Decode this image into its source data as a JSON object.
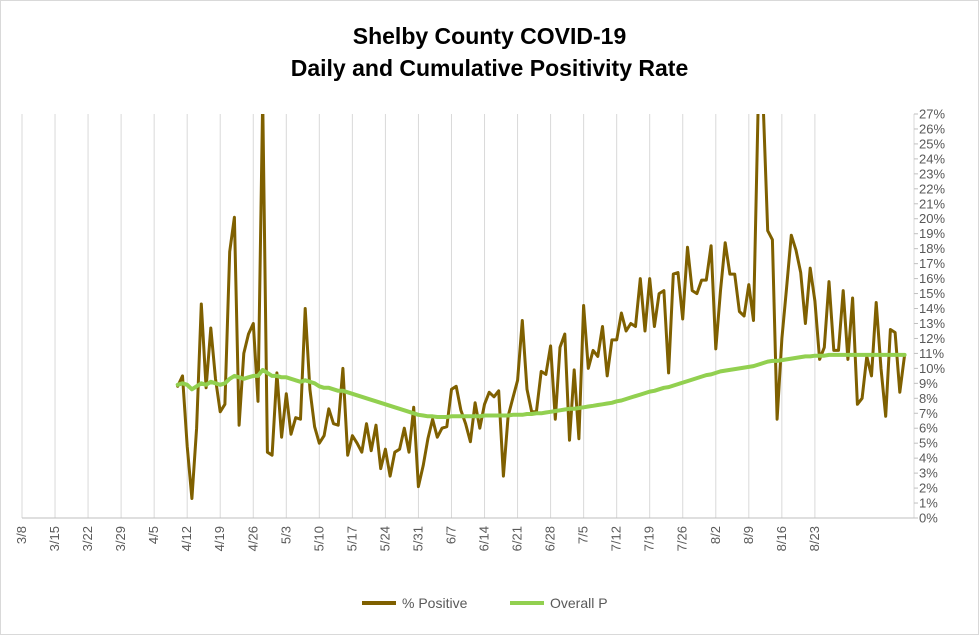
{
  "chart_data": {
    "type": "line",
    "title": [
      "Shelby County COVID-19",
      "Daily and Cumulative Positivity Rate"
    ],
    "x_tick_labels": [
      "3/8",
      "3/15",
      "3/22",
      "3/29",
      "4/5",
      "4/12",
      "4/19",
      "4/26",
      "5/3",
      "5/10",
      "5/17",
      "5/24",
      "5/31",
      "6/7",
      "6/14",
      "6/21",
      "6/28",
      "7/5",
      "7/12",
      "7/19",
      "7/26",
      "8/2",
      "8/9",
      "8/16",
      "8/23"
    ],
    "y_tick_labels": [
      "0%",
      "1%",
      "2%",
      "3%",
      "4%",
      "5%",
      "6%",
      "7%",
      "8%",
      "9%",
      "10%",
      "11%",
      "12%",
      "13%",
      "14%",
      "15%",
      "16%",
      "17%",
      "18%",
      "19%",
      "20%",
      "21%",
      "22%",
      "23%",
      "24%",
      "25%",
      "26%",
      "27%"
    ],
    "ylim": [
      0,
      27
    ],
    "y_axis_position": "right",
    "grid": "vertical",
    "legend_position": "bottom",
    "series": [
      {
        "name": "% Positive",
        "color": "#7f6000",
        "points": [
          [
            33,
            8.8
          ],
          [
            34,
            9.5
          ],
          [
            35,
            4.8
          ],
          [
            36,
            1.3
          ],
          [
            37,
            6.0
          ],
          [
            38,
            14.3
          ],
          [
            39,
            8.7
          ],
          [
            40,
            12.7
          ],
          [
            41,
            9.3
          ],
          [
            42,
            7.1
          ],
          [
            43,
            7.6
          ],
          [
            44,
            17.8
          ],
          [
            45,
            20.1
          ],
          [
            46,
            6.2
          ],
          [
            47,
            11.0
          ],
          [
            48,
            12.3
          ],
          [
            49,
            13.0
          ],
          [
            50,
            7.8
          ],
          [
            51,
            28.0
          ],
          [
            52,
            4.4
          ],
          [
            53,
            4.2
          ],
          [
            54,
            9.7
          ],
          [
            55,
            5.4
          ],
          [
            56,
            8.3
          ],
          [
            57,
            5.6
          ],
          [
            58,
            6.7
          ],
          [
            59,
            6.6
          ],
          [
            60,
            14.0
          ],
          [
            61,
            8.6
          ],
          [
            62,
            6.1
          ],
          [
            63,
            5.0
          ],
          [
            64,
            5.5
          ],
          [
            65,
            7.3
          ],
          [
            66,
            6.3
          ],
          [
            67,
            6.2
          ],
          [
            68,
            10.0
          ],
          [
            69,
            4.2
          ],
          [
            70,
            5.5
          ],
          [
            71,
            5.0
          ],
          [
            72,
            4.4
          ],
          [
            73,
            6.3
          ],
          [
            74,
            4.5
          ],
          [
            75,
            6.2
          ],
          [
            76,
            3.3
          ],
          [
            77,
            4.6
          ],
          [
            78,
            2.8
          ],
          [
            79,
            4.4
          ],
          [
            80,
            4.6
          ],
          [
            81,
            6.0
          ],
          [
            82,
            4.4
          ],
          [
            83,
            7.4
          ],
          [
            84,
            2.1
          ],
          [
            85,
            3.5
          ],
          [
            86,
            5.3
          ],
          [
            87,
            6.6
          ],
          [
            88,
            5.4
          ],
          [
            89,
            6.0
          ],
          [
            90,
            6.1
          ],
          [
            91,
            8.6
          ],
          [
            92,
            8.8
          ],
          [
            93,
            7.2
          ],
          [
            94,
            6.3
          ],
          [
            95,
            5.1
          ],
          [
            96,
            7.7
          ],
          [
            97,
            6.0
          ],
          [
            98,
            7.6
          ],
          [
            99,
            8.4
          ],
          [
            100,
            8.1
          ],
          [
            101,
            8.5
          ],
          [
            102,
            2.8
          ],
          [
            103,
            6.8
          ],
          [
            104,
            8.0
          ],
          [
            105,
            9.2
          ],
          [
            106,
            13.2
          ],
          [
            107,
            8.6
          ],
          [
            108,
            7.1
          ],
          [
            109,
            7.1
          ],
          [
            110,
            9.8
          ],
          [
            111,
            9.6
          ],
          [
            112,
            11.5
          ],
          [
            113,
            6.6
          ],
          [
            114,
            11.4
          ],
          [
            115,
            12.3
          ],
          [
            116,
            5.2
          ],
          [
            117,
            9.9
          ],
          [
            118,
            5.3
          ],
          [
            119,
            14.2
          ],
          [
            120,
            10.0
          ],
          [
            121,
            11.2
          ],
          [
            122,
            10.8
          ],
          [
            123,
            12.8
          ],
          [
            124,
            9.5
          ],
          [
            125,
            11.9
          ],
          [
            126,
            11.9
          ],
          [
            127,
            13.7
          ],
          [
            128,
            12.5
          ],
          [
            129,
            13.0
          ],
          [
            130,
            12.8
          ],
          [
            131,
            16.0
          ],
          [
            132,
            12.5
          ],
          [
            133,
            16.0
          ],
          [
            134,
            12.8
          ],
          [
            135,
            15.0
          ],
          [
            136,
            15.2
          ],
          [
            137,
            9.7
          ],
          [
            138,
            16.3
          ],
          [
            139,
            16.4
          ],
          [
            140,
            13.3
          ],
          [
            141,
            18.1
          ],
          [
            142,
            15.2
          ],
          [
            143,
            15.0
          ],
          [
            144,
            15.9
          ],
          [
            145,
            15.9
          ],
          [
            146,
            18.2
          ],
          [
            147,
            11.3
          ],
          [
            148,
            15.2
          ],
          [
            149,
            18.4
          ],
          [
            150,
            16.3
          ],
          [
            151,
            16.3
          ],
          [
            152,
            13.8
          ],
          [
            153,
            13.5
          ],
          [
            154,
            15.6
          ],
          [
            155,
            13.2
          ],
          [
            156,
            28.0
          ],
          [
            157,
            28.0
          ],
          [
            158,
            19.2
          ],
          [
            159,
            18.6
          ],
          [
            160,
            6.6
          ],
          [
            161,
            12.0
          ],
          [
            162,
            15.4
          ],
          [
            163,
            18.9
          ],
          [
            164,
            17.9
          ],
          [
            165,
            16.4
          ],
          [
            166,
            13.0
          ],
          [
            167,
            16.7
          ],
          [
            168,
            14.5
          ],
          [
            169,
            10.6
          ],
          [
            170,
            11.4
          ],
          [
            171,
            15.8
          ],
          [
            172,
            11.2
          ],
          [
            173,
            11.2
          ],
          [
            174,
            15.2
          ],
          [
            175,
            10.6
          ],
          [
            176,
            14.7
          ],
          [
            177,
            7.6
          ],
          [
            178,
            8.0
          ],
          [
            179,
            10.8
          ],
          [
            180,
            9.5
          ],
          [
            181,
            14.4
          ],
          [
            182,
            10.0
          ],
          [
            183,
            6.8
          ],
          [
            184,
            12.6
          ],
          [
            185,
            12.4
          ],
          [
            186,
            8.4
          ],
          [
            187,
            10.9
          ]
        ]
      },
      {
        "name": "Overall P",
        "color": "#92d050",
        "points": [
          [
            33,
            8.9
          ],
          [
            34,
            9.0
          ],
          [
            35,
            8.9
          ],
          [
            36,
            8.6
          ],
          [
            37,
            8.8
          ],
          [
            38,
            9.0
          ],
          [
            39,
            8.9
          ],
          [
            40,
            9.1
          ],
          [
            41,
            9.0
          ],
          [
            42,
            8.9
          ],
          [
            43,
            9.0
          ],
          [
            44,
            9.3
          ],
          [
            45,
            9.5
          ],
          [
            46,
            9.4
          ],
          [
            47,
            9.3
          ],
          [
            48,
            9.4
          ],
          [
            49,
            9.5
          ],
          [
            50,
            9.5
          ],
          [
            51,
            9.9
          ],
          [
            52,
            9.7
          ],
          [
            53,
            9.5
          ],
          [
            54,
            9.5
          ],
          [
            55,
            9.4
          ],
          [
            56,
            9.4
          ],
          [
            57,
            9.3
          ],
          [
            58,
            9.2
          ],
          [
            59,
            9.1
          ],
          [
            60,
            9.2
          ],
          [
            61,
            9.1
          ],
          [
            62,
            9.0
          ],
          [
            63,
            8.8
          ],
          [
            64,
            8.7
          ],
          [
            65,
            8.7
          ],
          [
            66,
            8.6
          ],
          [
            67,
            8.5
          ],
          [
            68,
            8.5
          ],
          [
            69,
            8.4
          ],
          [
            70,
            8.3
          ],
          [
            71,
            8.2
          ],
          [
            72,
            8.1
          ],
          [
            73,
            8.0
          ],
          [
            74,
            7.9
          ],
          [
            75,
            7.8
          ],
          [
            76,
            7.7
          ],
          [
            77,
            7.6
          ],
          [
            78,
            7.5
          ],
          [
            79,
            7.4
          ],
          [
            80,
            7.3
          ],
          [
            81,
            7.2
          ],
          [
            82,
            7.1
          ],
          [
            83,
            7.0
          ],
          [
            84,
            6.9
          ],
          [
            85,
            6.85
          ],
          [
            86,
            6.8
          ],
          [
            87,
            6.8
          ],
          [
            88,
            6.75
          ],
          [
            89,
            6.75
          ],
          [
            90,
            6.75
          ],
          [
            91,
            6.8
          ],
          [
            92,
            6.8
          ],
          [
            93,
            6.8
          ],
          [
            94,
            6.8
          ],
          [
            95,
            6.8
          ],
          [
            96,
            6.8
          ],
          [
            97,
            6.8
          ],
          [
            98,
            6.85
          ],
          [
            99,
            6.85
          ],
          [
            100,
            6.85
          ],
          [
            101,
            6.85
          ],
          [
            102,
            6.85
          ],
          [
            103,
            6.85
          ],
          [
            104,
            6.9
          ],
          [
            105,
            6.9
          ],
          [
            106,
            6.9
          ],
          [
            107,
            6.95
          ],
          [
            108,
            6.95
          ],
          [
            109,
            7.0
          ],
          [
            110,
            7.0
          ],
          [
            111,
            7.05
          ],
          [
            112,
            7.1
          ],
          [
            113,
            7.15
          ],
          [
            114,
            7.2
          ],
          [
            115,
            7.25
          ],
          [
            116,
            7.3
          ],
          [
            117,
            7.3
          ],
          [
            118,
            7.35
          ],
          [
            119,
            7.4
          ],
          [
            120,
            7.45
          ],
          [
            121,
            7.5
          ],
          [
            122,
            7.55
          ],
          [
            123,
            7.6
          ],
          [
            124,
            7.65
          ],
          [
            125,
            7.7
          ],
          [
            126,
            7.8
          ],
          [
            127,
            7.85
          ],
          [
            128,
            7.95
          ],
          [
            129,
            8.05
          ],
          [
            130,
            8.15
          ],
          [
            131,
            8.25
          ],
          [
            132,
            8.35
          ],
          [
            133,
            8.45
          ],
          [
            134,
            8.5
          ],
          [
            135,
            8.6
          ],
          [
            136,
            8.7
          ],
          [
            137,
            8.75
          ],
          [
            138,
            8.85
          ],
          [
            139,
            8.95
          ],
          [
            140,
            9.05
          ],
          [
            141,
            9.15
          ],
          [
            142,
            9.25
          ],
          [
            143,
            9.35
          ],
          [
            144,
            9.45
          ],
          [
            145,
            9.55
          ],
          [
            146,
            9.6
          ],
          [
            147,
            9.7
          ],
          [
            148,
            9.8
          ],
          [
            149,
            9.85
          ],
          [
            150,
            9.9
          ],
          [
            151,
            9.95
          ],
          [
            152,
            10.0
          ],
          [
            153,
            10.05
          ],
          [
            154,
            10.1
          ],
          [
            155,
            10.15
          ],
          [
            156,
            10.25
          ],
          [
            157,
            10.35
          ],
          [
            158,
            10.45
          ],
          [
            159,
            10.5
          ],
          [
            160,
            10.5
          ],
          [
            161,
            10.55
          ],
          [
            162,
            10.6
          ],
          [
            163,
            10.65
          ],
          [
            164,
            10.7
          ],
          [
            165,
            10.75
          ],
          [
            166,
            10.8
          ],
          [
            167,
            10.8
          ],
          [
            168,
            10.85
          ],
          [
            169,
            10.85
          ],
          [
            170,
            10.85
          ],
          [
            171,
            10.9
          ],
          [
            172,
            10.9
          ],
          [
            173,
            10.9
          ],
          [
            174,
            10.9
          ],
          [
            175,
            10.9
          ],
          [
            176,
            10.9
          ],
          [
            177,
            10.9
          ],
          [
            178,
            10.9
          ],
          [
            179,
            10.9
          ],
          [
            180,
            10.9
          ],
          [
            181,
            10.9
          ],
          [
            182,
            10.9
          ],
          [
            183,
            10.9
          ],
          [
            184,
            10.9
          ],
          [
            185,
            10.9
          ],
          [
            186,
            10.9
          ],
          [
            187,
            10.9
          ]
        ]
      }
    ]
  }
}
